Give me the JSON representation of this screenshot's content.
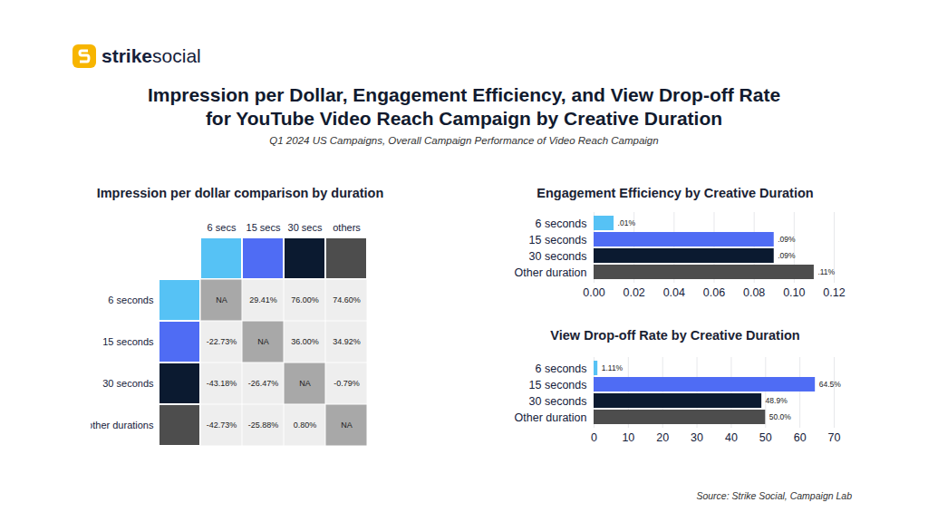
{
  "brand": [
    "strike",
    "social"
  ],
  "title": "Impression per Dollar, Engagement Efficiency, and View Drop-off Rate\nfor YouTube Video Reach Campaign by Creative Duration",
  "subtitle": "Q1 2024 US Campaigns, Overall Campaign Performance of Video Reach Campaign",
  "source": "Source: Strike Social, Campaign Lab",
  "chart_data": [
    {
      "type": "heatmap",
      "title": "Impression per dollar comparison by duration",
      "columns": [
        "6 secs",
        "15 secs",
        "30 secs",
        "others"
      ],
      "rows": [
        "6 seconds",
        "15 seconds",
        "30 seconds",
        "other durations"
      ],
      "colors": [
        "#56c2f5",
        "#4f6cf4",
        "#0b1a30",
        "#4d4d4d"
      ],
      "values": [
        [
          null,
          29.41,
          76.0,
          74.6
        ],
        [
          -22.73,
          null,
          36.0,
          34.92
        ],
        [
          -43.18,
          -26.47,
          null,
          -0.79
        ],
        [
          -42.73,
          -25.88,
          0.8,
          null
        ]
      ],
      "value_labels": [
        [
          "NA",
          "29.41%",
          "76.00%",
          "74.60%"
        ],
        [
          "-22.73%",
          "NA",
          "36.00%",
          "34.92%"
        ],
        [
          "-43.18%",
          "-26.47%",
          "NA",
          "-0.79%"
        ],
        [
          "-42.73%",
          "-25.88%",
          "0.80%",
          "NA"
        ]
      ]
    },
    {
      "type": "bar",
      "orientation": "horizontal",
      "title": "Engagement Efficiency by Creative Duration",
      "categories": [
        "6 seconds",
        "15 seconds",
        "30 seconds",
        "Other duration"
      ],
      "values": [
        0.01,
        0.09,
        0.09,
        0.11
      ],
      "value_labels": [
        ".01%",
        ".09%",
        ".09%",
        ".11%"
      ],
      "colors": [
        "#56c2f5",
        "#4f6cf4",
        "#0b1a30",
        "#4d4d4d"
      ],
      "xlim": [
        0,
        0.12
      ],
      "xticks": [
        {
          "value": 0,
          "label": "0.00"
        },
        {
          "value": 0.02,
          "label": "0.02"
        },
        {
          "value": 0.04,
          "label": "0.04"
        },
        {
          "value": 0.06,
          "label": "0.06"
        },
        {
          "value": 0.08,
          "label": "0.08"
        },
        {
          "value": 0.1,
          "label": "0.10"
        },
        {
          "value": 0.12,
          "label": "0.12"
        }
      ],
      "grid": true,
      "data_labels": true
    },
    {
      "type": "bar",
      "orientation": "horizontal",
      "title": "View Drop-off Rate by Creative Duration",
      "categories": [
        "6 seconds",
        "15 seconds",
        "30 seconds",
        "Other duration"
      ],
      "values": [
        1.11,
        64.5,
        48.9,
        50.0
      ],
      "value_labels": [
        "1.11%",
        "64.5%",
        "48.9%",
        "50.0%"
      ],
      "colors": [
        "#56c2f5",
        "#4f6cf4",
        "#0b1a30",
        "#4d4d4d"
      ],
      "xlim": [
        0,
        70
      ],
      "xticks": [
        0,
        10,
        20,
        30,
        40,
        50,
        60,
        70
      ],
      "grid": true,
      "data_labels": true
    }
  ]
}
